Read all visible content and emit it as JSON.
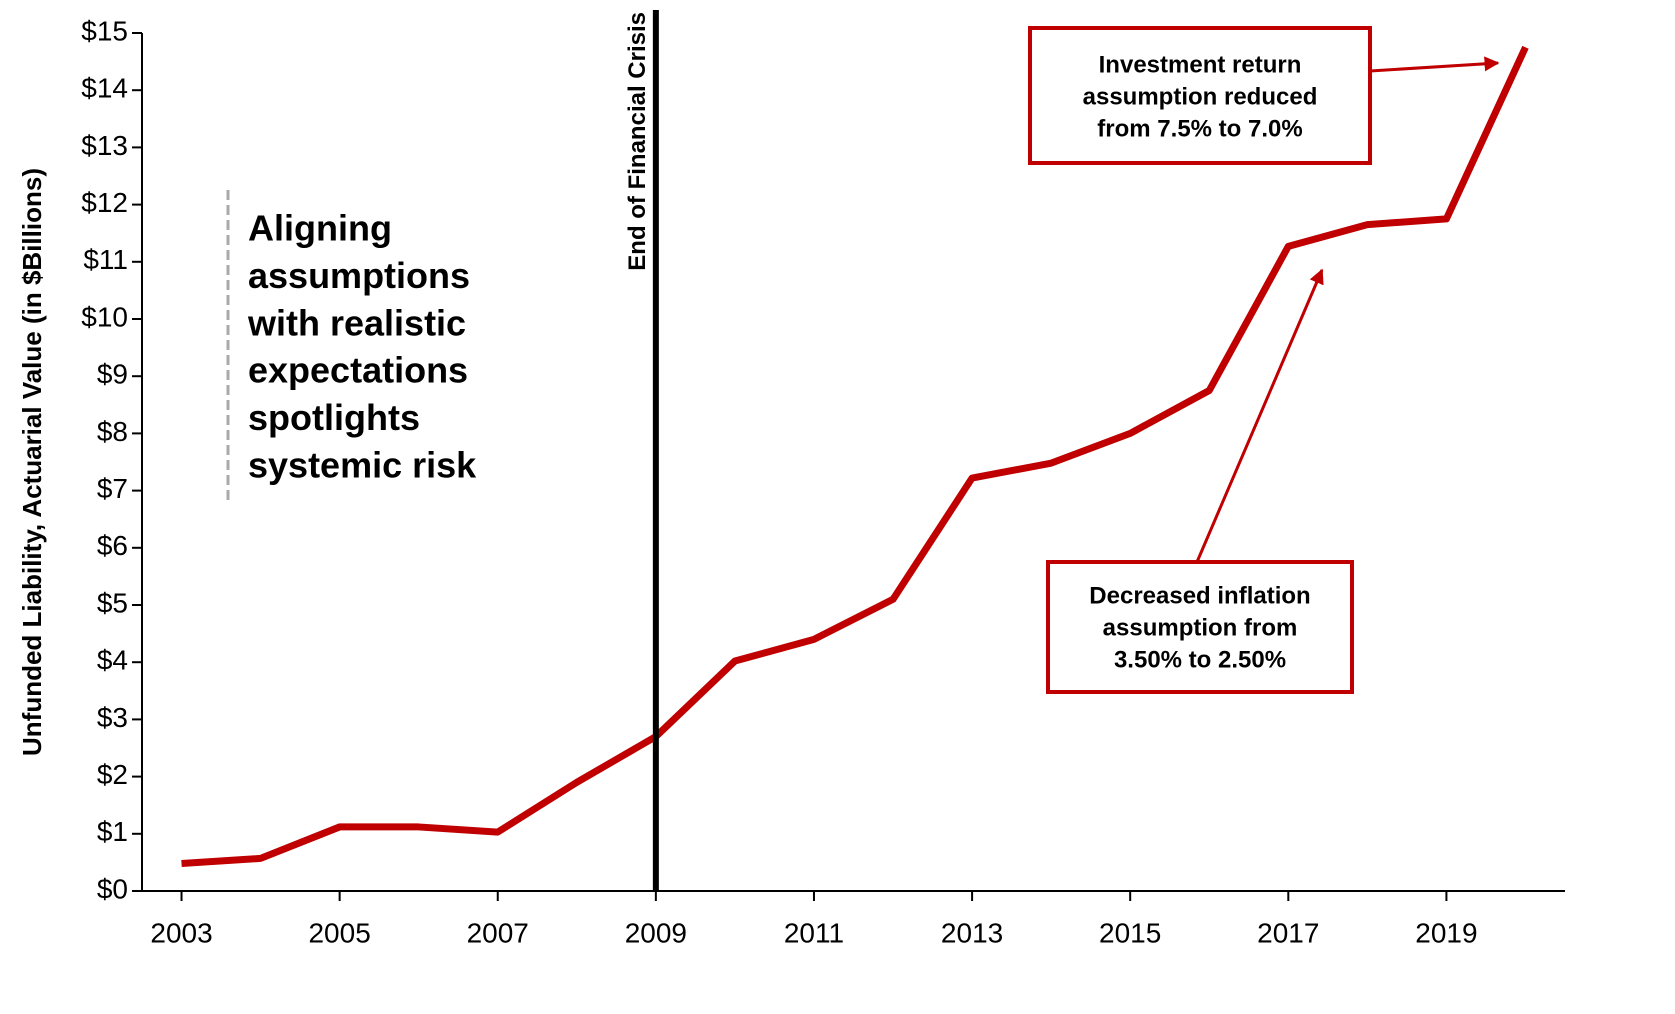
{
  "chart_data": {
    "type": "line",
    "y_label": "Unfunded Liability, Actuarial Value (in $Billions)",
    "x": [
      2003,
      2004,
      2005,
      2006,
      2007,
      2008,
      2009,
      2010,
      2011,
      2012,
      2013,
      2014,
      2015,
      2016,
      2017,
      2018,
      2019,
      2020
    ],
    "values": [
      0.48,
      0.57,
      1.12,
      1.12,
      1.03,
      1.9,
      2.7,
      4.02,
      4.4,
      5.1,
      7.22,
      7.48,
      8.0,
      8.75,
      11.27,
      11.65,
      11.75,
      14.75
    ],
    "color": "#c00000",
    "xlim": [
      2002.5,
      2020.5
    ],
    "xticks": [
      2003,
      2005,
      2007,
      2009,
      2011,
      2013,
      2015,
      2017,
      2019
    ],
    "ylim": [
      0,
      15
    ],
    "yticks": [
      {
        "value": 0,
        "label": "$0"
      },
      {
        "value": 1,
        "label": "$1"
      },
      {
        "value": 2,
        "label": "$2"
      },
      {
        "value": 3,
        "label": "$3"
      },
      {
        "value": 4,
        "label": "$4"
      },
      {
        "value": 5,
        "label": "$5"
      },
      {
        "value": 6,
        "label": "$6"
      },
      {
        "value": 7,
        "label": "$7"
      },
      {
        "value": 8,
        "label": "$8"
      },
      {
        "value": 9,
        "label": "$9"
      },
      {
        "value": 10,
        "label": "$10"
      },
      {
        "value": 11,
        "label": "$11"
      },
      {
        "value": 12,
        "label": "$12"
      },
      {
        "value": 13,
        "label": "$13"
      },
      {
        "value": 14,
        "label": "$14"
      },
      {
        "value": 15,
        "label": "$15"
      }
    ],
    "vline": {
      "x": 2009,
      "label": "End of Financial Crisis"
    },
    "annotations": [
      {
        "lines": [
          "Aligning",
          "assumptions",
          "with realistic",
          "expectations",
          "spotlights",
          "systemic risk"
        ]
      },
      {
        "lines": [
          "Investment return",
          "assumption reduced",
          "from 7.5% to 7.0%"
        ]
      },
      {
        "lines": [
          "Decreased inflation",
          "assumption from",
          "3.50% to 2.50%"
        ]
      }
    ]
  }
}
